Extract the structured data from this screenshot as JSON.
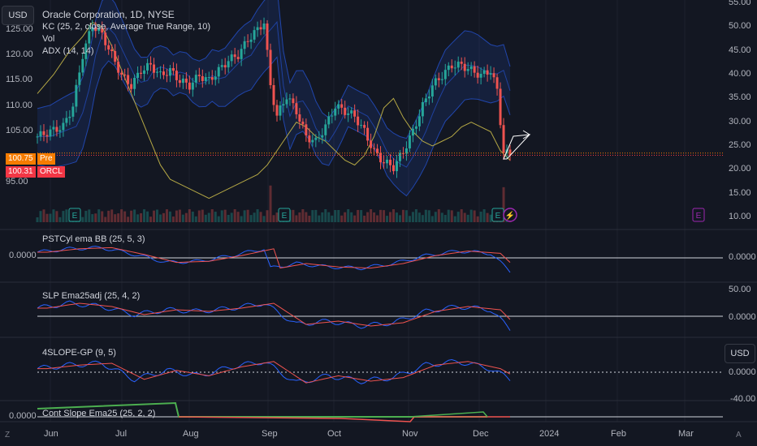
{
  "header": {
    "currency": "USD",
    "title": "Oracle Corporation, 1D, NYSE",
    "indicators": [
      "KC (25, 2, close, Average True Range, 10)",
      "Vol",
      "ADX (14, 14)"
    ]
  },
  "badges": {
    "pre_value": "100.75",
    "pre_label": "Pre",
    "last_value": "100.31",
    "last_label": "ORCL",
    "pre_color": "#f57c00",
    "last_color": "#f23645"
  },
  "panes": {
    "p1": "PSTCyl ema BB (25, 5, 3)",
    "p2": "SLP Ema25adj (25, 4, 2)",
    "p3": "4SLOPE-GP (9, 5)",
    "p4": "Cont Slope Ema25 (25, 2, 2)"
  },
  "pane_values": {
    "p1_left": "0.0000",
    "p1_right": "0.0000",
    "p2_top": "50.00",
    "p2_right": "0.0000",
    "p3_right": "0.0000",
    "p3_bottom": "-40.00",
    "p4_left": "0.0000"
  },
  "side_button": "USD",
  "event_markers": {
    "earnings": "E",
    "dividend": "⚡"
  },
  "corners": {
    "bottom_left": "Z",
    "bottom_right": "A"
  },
  "colors": {
    "up": "#26a69a",
    "down": "#ef5350",
    "keltner": "#2962ff",
    "adx": "#b5a845",
    "blue_line": "#2962ff",
    "red_line": "#ef5350"
  },
  "chart_data": {
    "type": "candlestick",
    "title": "Oracle Corporation, 1D, NYSE",
    "price_axis_left": [
      "125.00",
      "120.00",
      "115.00",
      "110.00",
      "105.00",
      "95.00"
    ],
    "adx_axis_right": [
      "55.00",
      "50.00",
      "45.00",
      "40.00",
      "35.00",
      "30.00",
      "25.00",
      "20.00",
      "15.00",
      "10.00"
    ],
    "x_ticks": [
      "Jun",
      "Jul",
      "Aug",
      "Sep",
      "Oct",
      "Nov",
      "Dec",
      "2024",
      "Feb",
      "Mar"
    ],
    "ylim_price": [
      91,
      127
    ],
    "ylim_adx": [
      10,
      55
    ],
    "last_price": 100.31,
    "premarket_price": 100.75,
    "price_series": [
      [
        0,
        104
      ],
      [
        4,
        105
      ],
      [
        8,
        106
      ],
      [
        11,
        110
      ],
      [
        14,
        120
      ],
      [
        17,
        126
      ],
      [
        20,
        124
      ],
      [
        23,
        120
      ],
      [
        26,
        116
      ],
      [
        29,
        114
      ],
      [
        32,
        117
      ],
      [
        35,
        118
      ],
      [
        38,
        116
      ],
      [
        41,
        117
      ],
      [
        44,
        115
      ],
      [
        47,
        114
      ],
      [
        50,
        116
      ],
      [
        53,
        115
      ],
      [
        56,
        117
      ],
      [
        59,
        119
      ],
      [
        62,
        120
      ],
      [
        65,
        123
      ],
      [
        68,
        125
      ],
      [
        70,
        126.5
      ],
      [
        72,
        114
      ],
      [
        74,
        108
      ],
      [
        77,
        112
      ],
      [
        80,
        109
      ],
      [
        83,
        104
      ],
      [
        86,
        103
      ],
      [
        89,
        106
      ],
      [
        92,
        110
      ],
      [
        95,
        109
      ],
      [
        98,
        108
      ],
      [
        101,
        105
      ],
      [
        104,
        101
      ],
      [
        107,
        99
      ],
      [
        110,
        98
      ],
      [
        113,
        101
      ],
      [
        116,
        105
      ],
      [
        119,
        110
      ],
      [
        122,
        114
      ],
      [
        125,
        116
      ],
      [
        128,
        118
      ],
      [
        131,
        118
      ],
      [
        134,
        117
      ],
      [
        137,
        116
      ],
      [
        140,
        117
      ],
      [
        142,
        113
      ],
      [
        144,
        101
      ],
      [
        146,
        100.3
      ]
    ],
    "adx_series": [
      [
        0,
        36
      ],
      [
        5,
        40
      ],
      [
        10,
        45
      ],
      [
        14,
        48
      ],
      [
        17,
        51
      ],
      [
        20,
        50
      ],
      [
        23,
        46
      ],
      [
        26,
        41
      ],
      [
        29,
        36
      ],
      [
        32,
        31
      ],
      [
        35,
        26
      ],
      [
        38,
        21
      ],
      [
        41,
        18
      ],
      [
        44,
        17
      ],
      [
        47,
        16
      ],
      [
        50,
        15
      ],
      [
        53,
        14
      ],
      [
        56,
        15
      ],
      [
        59,
        16
      ],
      [
        62,
        17
      ],
      [
        65,
        18
      ],
      [
        68,
        19
      ],
      [
        71,
        21
      ],
      [
        74,
        24
      ],
      [
        77,
        27
      ],
      [
        80,
        30
      ],
      [
        83,
        29
      ],
      [
        86,
        27
      ],
      [
        89,
        26
      ],
      [
        92,
        24
      ],
      [
        95,
        22
      ],
      [
        98,
        21
      ],
      [
        101,
        23
      ],
      [
        104,
        27
      ],
      [
        107,
        33
      ],
      [
        110,
        35
      ],
      [
        113,
        31
      ],
      [
        116,
        28
      ],
      [
        119,
        26
      ],
      [
        122,
        25
      ],
      [
        125,
        26
      ],
      [
        128,
        27
      ],
      [
        131,
        29
      ],
      [
        134,
        30
      ],
      [
        137,
        29
      ],
      [
        140,
        28
      ],
      [
        143,
        24
      ],
      [
        146,
        22
      ]
    ],
    "pane1_series": [
      {
        "name": "",
        "values": [
          [
            0,
            0.5
          ],
          [
            10,
            0.8
          ],
          [
            20,
            0.9
          ],
          [
            30,
            0.3
          ],
          [
            40,
            -0.4
          ],
          [
            50,
            -0.3
          ],
          [
            60,
            0.2
          ],
          [
            70,
            0.8
          ],
          [
            72,
            -0.9
          ],
          [
            80,
            -0.5
          ],
          [
            90,
            -0.8
          ],
          [
            100,
            -0.9
          ],
          [
            110,
            -0.5
          ],
          [
            120,
            0.2
          ],
          [
            130,
            0.6
          ],
          [
            140,
            0.4
          ],
          [
            146,
            -1.2
          ]
        ]
      }
    ],
    "pane2_series": [
      {
        "name": "",
        "values": [
          [
            0,
            0.5
          ],
          [
            10,
            0.8
          ],
          [
            20,
            0.6
          ],
          [
            30,
            0.1
          ],
          [
            40,
            0.4
          ],
          [
            50,
            0.3
          ],
          [
            60,
            0.5
          ],
          [
            70,
            0.8
          ],
          [
            80,
            -0.5
          ],
          [
            90,
            -0.3
          ],
          [
            100,
            -0.6
          ],
          [
            110,
            -0.4
          ],
          [
            120,
            0.3
          ],
          [
            130,
            0.6
          ],
          [
            140,
            0.4
          ],
          [
            146,
            -0.8
          ]
        ]
      }
    ],
    "pane3_series": [
      {
        "name": "",
        "values": [
          [
            0,
            0.2
          ],
          [
            10,
            0.4
          ],
          [
            20,
            0.5
          ],
          [
            30,
            -0.4
          ],
          [
            40,
            0.1
          ],
          [
            50,
            -0.2
          ],
          [
            60,
            0.3
          ],
          [
            70,
            0.6
          ],
          [
            80,
            -0.6
          ],
          [
            90,
            -0.2
          ],
          [
            100,
            -0.5
          ],
          [
            110,
            -0.3
          ],
          [
            120,
            0.4
          ],
          [
            130,
            0.6
          ],
          [
            140,
            0.2
          ],
          [
            146,
            -0.4
          ]
        ]
      }
    ],
    "pane4_series": [
      {
        "name": "",
        "values": [
          [
            0,
            0.5
          ],
          [
            36,
            0.6
          ],
          [
            40,
            0
          ],
          [
            120,
            -0.2
          ],
          [
            125,
            0.2
          ],
          [
            140,
            0.2
          ],
          [
            146,
            0
          ]
        ]
      }
    ]
  }
}
